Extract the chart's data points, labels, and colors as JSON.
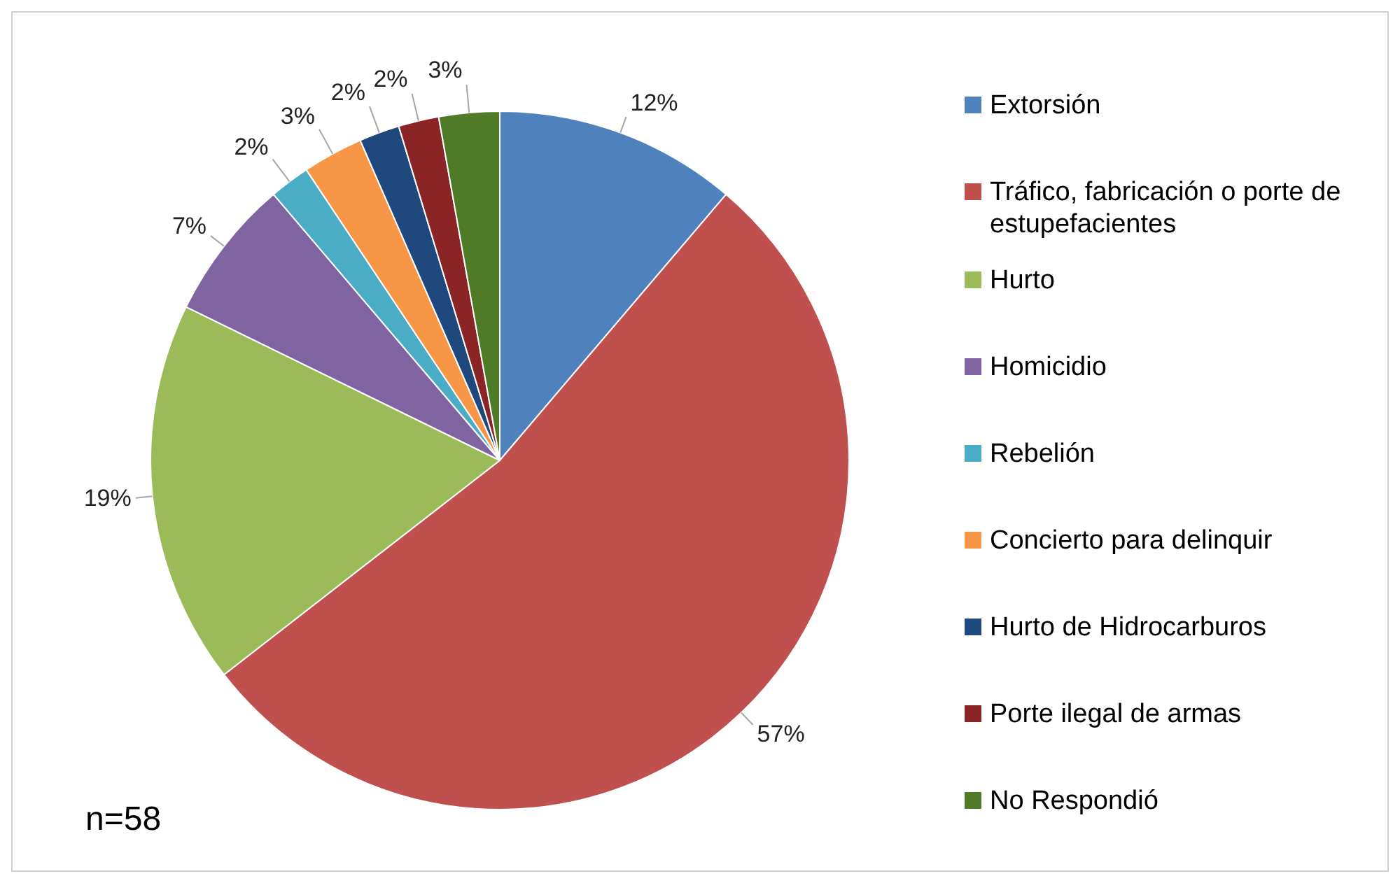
{
  "chart_data": {
    "type": "pie",
    "categories": [
      "Extorsión",
      "Tráfico, fabricación o porte de estupefacientes",
      "Hurto",
      "Homicidio",
      "Rebelión",
      "Concierto para delinquir",
      "Hurto de Hidrocarburos",
      "Porte ilegal de armas",
      "No Respondió"
    ],
    "values": [
      12,
      57,
      19,
      7,
      2,
      3,
      2,
      2,
      3
    ],
    "value_labels": [
      "12%",
      "57%",
      "19%",
      "7%",
      "2%",
      "3%",
      "2%",
      "2%",
      "3%"
    ],
    "colors": [
      "#4f81bd",
      "#c0504d",
      "#9bbb59",
      "#8064a2",
      "#4bacc6",
      "#f79646",
      "#1f497d",
      "#8b2525",
      "#4f7a28"
    ],
    "legend": "right",
    "annotations": [
      "n=58"
    ]
  }
}
